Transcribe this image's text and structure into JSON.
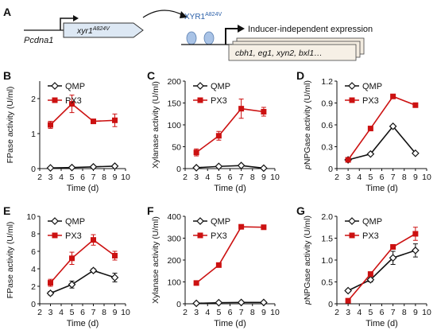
{
  "panel_a": {
    "letter": "A",
    "promoter": {
      "italic": "P",
      "italic2": "cdna1"
    },
    "gene": {
      "base": "xyr1",
      "sup": "A824V"
    },
    "protein": {
      "base": "XYR1",
      "sup": "A824V"
    },
    "expression_label": "Inducer-independent expression",
    "target_genes": "cbh1, eg1, xyn2, bxl1…"
  },
  "colors": {
    "QMP": "#111111",
    "PX3": "#cc1111",
    "box_fill": "#dde8f4",
    "gene_box_fill": "#f3ece0",
    "bubble": "#a9c3e6"
  },
  "legend": [
    "QMP",
    "PX3"
  ],
  "chart_data": [
    {
      "id": "B",
      "type": "line",
      "ylabel": "FPase activity (U/ml)",
      "xlabel": "Time (d)",
      "xlim": [
        2,
        10
      ],
      "xticks": [
        2,
        3,
        4,
        5,
        6,
        7,
        8,
        9,
        10
      ],
      "ylim": [
        0,
        2.5
      ],
      "yticks": [
        0,
        1,
        2
      ],
      "ytick_labels": [
        "0",
        "1",
        "2"
      ],
      "x": [
        3,
        5,
        7,
        9
      ],
      "series": [
        {
          "name": "QMP",
          "values": [
            0.02,
            0.03,
            0.05,
            0.07
          ],
          "errors": [
            0.01,
            0.01,
            0.01,
            0.01
          ]
        },
        {
          "name": "PX3",
          "values": [
            1.25,
            1.85,
            1.35,
            1.38
          ],
          "errors": [
            0.1,
            0.25,
            0.03,
            0.18
          ]
        }
      ]
    },
    {
      "id": "C",
      "type": "line",
      "ylabel": "Xylanase activity (U/ml)",
      "xlabel": "Time (d)",
      "xlim": [
        2,
        10
      ],
      "xticks": [
        2,
        3,
        4,
        5,
        6,
        7,
        8,
        9,
        10
      ],
      "ylim": [
        0,
        200
      ],
      "yticks": [
        0,
        50,
        100,
        150,
        200
      ],
      "ytick_labels": [
        "0",
        "50",
        "100",
        "150",
        "200"
      ],
      "x": [
        3,
        5,
        7,
        9
      ],
      "series": [
        {
          "name": "QMP",
          "values": [
            2,
            5,
            7,
            1
          ],
          "errors": [
            1,
            1,
            2,
            0.5
          ]
        },
        {
          "name": "PX3",
          "values": [
            37,
            75,
            137,
            130
          ],
          "errors": [
            8,
            10,
            22,
            10
          ]
        }
      ]
    },
    {
      "id": "D",
      "type": "line",
      "ylabel": "pNPGase activity (U/ml)",
      "ylabel_italic_prefix": "p",
      "ylabel_rest": "NPGase activity (U/ml)",
      "xlabel": "Time (d)",
      "xlim": [
        2,
        10
      ],
      "xticks": [
        2,
        3,
        4,
        5,
        6,
        7,
        8,
        9,
        10
      ],
      "ylim": [
        0,
        1.2
      ],
      "yticks": [
        0,
        0.3,
        0.6,
        0.9,
        1.2
      ],
      "ytick_labels": [
        "0",
        "0.3",
        "0.6",
        "0.9",
        "1.2"
      ],
      "x": [
        3,
        5,
        7,
        9
      ],
      "series": [
        {
          "name": "QMP",
          "values": [
            0.12,
            0.2,
            0.58,
            0.21
          ],
          "errors": [
            0,
            0,
            0,
            0
          ]
        },
        {
          "name": "PX3",
          "values": [
            0.12,
            0.55,
            0.99,
            0.87
          ],
          "errors": [
            0,
            0,
            0,
            0
          ]
        }
      ]
    },
    {
      "id": "E",
      "type": "line",
      "ylabel": "FPase activity (U/ml)",
      "xlabel": "Time (d)",
      "xlim": [
        2,
        10
      ],
      "xticks": [
        2,
        3,
        4,
        5,
        6,
        7,
        8,
        9,
        10
      ],
      "ylim": [
        0,
        10
      ],
      "yticks": [
        0,
        2,
        4,
        6,
        8,
        10
      ],
      "ytick_labels": [
        "0",
        "2",
        "4",
        "6",
        "8",
        "10"
      ],
      "x": [
        3,
        5,
        7,
        9
      ],
      "series": [
        {
          "name": "QMP",
          "values": [
            1.2,
            2.2,
            3.8,
            3.0
          ],
          "errors": [
            0.2,
            0.4,
            0.2,
            0.5
          ]
        },
        {
          "name": "PX3",
          "values": [
            2.4,
            5.2,
            7.3,
            5.5
          ],
          "errors": [
            0.4,
            0.7,
            0.6,
            0.5
          ]
        }
      ]
    },
    {
      "id": "F",
      "type": "line",
      "ylabel": "Xylanase activity (U/ml)",
      "xlabel": "Time (d)",
      "xlim": [
        2,
        10
      ],
      "xticks": [
        2,
        3,
        4,
        5,
        6,
        7,
        8,
        9,
        10
      ],
      "ylim": [
        0,
        400
      ],
      "yticks": [
        0,
        100,
        200,
        300,
        400
      ],
      "ytick_labels": [
        "0",
        "100",
        "200",
        "300",
        "400"
      ],
      "x": [
        3,
        5,
        7,
        9
      ],
      "series": [
        {
          "name": "QMP",
          "values": [
            2,
            5,
            6,
            6
          ],
          "errors": [
            1,
            1,
            1,
            1
          ]
        },
        {
          "name": "PX3",
          "values": [
            95,
            177,
            352,
            350
          ],
          "errors": [
            4,
            5,
            6,
            3
          ]
        }
      ]
    },
    {
      "id": "G",
      "type": "line",
      "ylabel": "pNPGase activity (U/ml)",
      "ylabel_italic_prefix": "p",
      "ylabel_rest": "NPGase activity (U/ml)",
      "xlabel": "Time (d)",
      "xlim": [
        2,
        10
      ],
      "xticks": [
        2,
        3,
        4,
        5,
        6,
        7,
        8,
        9,
        10
      ],
      "ylim": [
        0,
        2.0
      ],
      "yticks": [
        0,
        0.5,
        1.0,
        1.5,
        2.0
      ],
      "ytick_labels": [
        "0",
        "0.5",
        "1.0",
        "1.5",
        "2.0"
      ],
      "x": [
        3,
        5,
        7,
        9
      ],
      "series": [
        {
          "name": "QMP",
          "values": [
            0.3,
            0.55,
            1.05,
            1.22
          ],
          "errors": [
            0.03,
            0.05,
            0.15,
            0.15
          ]
        },
        {
          "name": "PX3",
          "values": [
            0.07,
            0.68,
            1.3,
            1.6
          ],
          "errors": [
            0.02,
            0.04,
            0.05,
            0.15
          ]
        }
      ]
    }
  ]
}
